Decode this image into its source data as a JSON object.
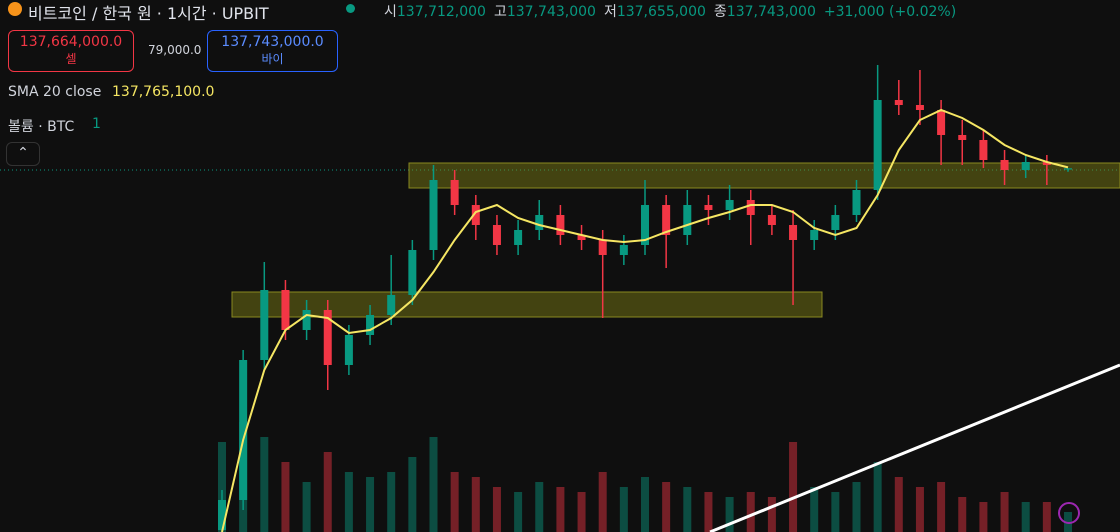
{
  "header": {
    "title": "비트코인 / 한국 원 · 1시간 · UPBIT",
    "ohlc": [
      {
        "label": "시",
        "value": "137,712,000"
      },
      {
        "label": "고",
        "value": "137,743,000"
      },
      {
        "label": "저",
        "value": "137,655,000"
      },
      {
        "label": "종",
        "value": "137,743,000"
      }
    ],
    "change": "+31,000 (+0.02%)",
    "sell_price": "137,664,000.0",
    "sell_label": "셀",
    "spread": "79,000.0",
    "buy_price": "137,743,000.0",
    "buy_label": "바이",
    "indicator": "SMA 20 close",
    "indicator_value": "137,765,100.0",
    "volume_label": "볼륨 · BTC",
    "volume_value": "1"
  },
  "chart_data": {
    "type": "candlestick",
    "open": [
      128700000,
      129450000,
      132950000,
      134700000,
      133700000,
      134200000,
      132825000,
      133575000,
      134075000,
      134575000,
      135700000,
      137450000,
      136825000,
      136325000,
      135825000,
      136200000,
      136575000,
      136075000,
      135950000,
      135575000,
      135825000,
      136825000,
      136075000,
      136825000,
      136700000,
      136950000,
      136575000,
      136325000,
      135950000,
      136200000,
      136575000,
      137200000,
      139450000,
      139325000,
      139200000,
      138575000,
      138450000,
      137950000,
      137700000,
      137900000,
      137712000
    ],
    "high": [
      129700000,
      133200000,
      135400000,
      134950000,
      134450000,
      134450000,
      133825000,
      134325000,
      135575000,
      135950000,
      137825000,
      137700000,
      137075000,
      136575000,
      136450000,
      136950000,
      136825000,
      136325000,
      136200000,
      136075000,
      137450000,
      137075000,
      137200000,
      137075000,
      137325000,
      137200000,
      136825000,
      136700000,
      136450000,
      136825000,
      137450000,
      140325000,
      139950000,
      140200000,
      139450000,
      138950000,
      138700000,
      138200000,
      138075000,
      138075000,
      137743000
    ],
    "low": [
      128650000,
      129200000,
      132700000,
      133450000,
      133450000,
      132200000,
      132575000,
      133325000,
      133825000,
      134325000,
      135450000,
      136575000,
      135950000,
      135575000,
      135575000,
      135950000,
      135825000,
      135700000,
      134000000,
      135325000,
      135575000,
      135250000,
      135825000,
      136325000,
      136450000,
      135825000,
      136075000,
      134325000,
      135700000,
      135950000,
      136400000,
      136950000,
      139075000,
      138825000,
      137825000,
      137825000,
      137750000,
      137325000,
      137500000,
      137325000,
      137655000
    ],
    "close": [
      129450000,
      132950000,
      134700000,
      133700000,
      134200000,
      132825000,
      133575000,
      134075000,
      134575000,
      135700000,
      137450000,
      136825000,
      136325000,
      135825000,
      136200000,
      136575000,
      136075000,
      135950000,
      135575000,
      135825000,
      136825000,
      136075000,
      136825000,
      136700000,
      136950000,
      136575000,
      136325000,
      135950000,
      136200000,
      136575000,
      137200000,
      139450000,
      139325000,
      139200000,
      138575000,
      138450000,
      137950000,
      137700000,
      137900000,
      137825000,
      137743000
    ],
    "volume": [
      270,
      330,
      285,
      210,
      150,
      240,
      180,
      165,
      180,
      225,
      285,
      180,
      165,
      135,
      120,
      150,
      135,
      120,
      180,
      135,
      165,
      150,
      135,
      120,
      105,
      120,
      105,
      270,
      135,
      120,
      150,
      210,
      165,
      135,
      150,
      105,
      90,
      120,
      90,
      90,
      60
    ],
    "sma": [
      128650000,
      130950000,
      132700000,
      133700000,
      134075000,
      134000000,
      133625000,
      133700000,
      134000000,
      134450000,
      135150000,
      135950000,
      136650000,
      136825000,
      136500000,
      136325000,
      136200000,
      136075000,
      135950000,
      135900000,
      135950000,
      136150000,
      136325000,
      136500000,
      136650000,
      136825000,
      136825000,
      136650000,
      136250000,
      136075000,
      136250000,
      137075000,
      138200000,
      138950000,
      139200000,
      139000000,
      138700000,
      138325000,
      138075000,
      137900000,
      137765100
    ],
    "ylim": [
      128650000,
      141950000
    ],
    "volume_lim": [
      0,
      600
    ],
    "up_color": "#089981",
    "down_color": "#f23645",
    "sma_color": "#f5e663"
  }
}
